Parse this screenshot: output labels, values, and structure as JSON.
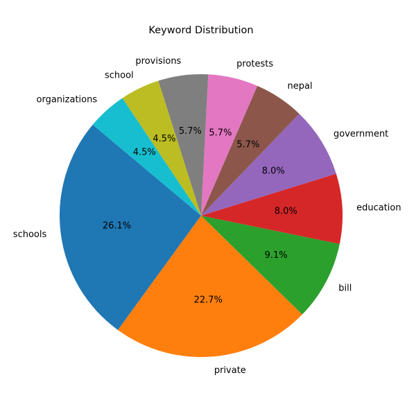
{
  "chart_data": {
    "type": "pie",
    "title": "Keyword Distribution",
    "categories": [
      "schools",
      "private",
      "bill",
      "education",
      "government",
      "nepal",
      "protests",
      "provisions",
      "school",
      "organizations"
    ],
    "values": [
      26.1,
      22.7,
      9.1,
      8.0,
      8.0,
      5.7,
      5.7,
      5.7,
      4.5,
      4.5
    ],
    "percent_labels": [
      "26.1%",
      "22.7%",
      "9.1%",
      "8.0%",
      "8.0%",
      "5.7%",
      "5.7%",
      "5.7%",
      "4.5%",
      "4.5%"
    ],
    "colors": [
      "#1f77b4",
      "#ff7f0e",
      "#2ca02c",
      "#d62728",
      "#9467bd",
      "#8c564b",
      "#e377c2",
      "#7f7f7f",
      "#bcbd22",
      "#17becf"
    ],
    "start_angle_deg": 140,
    "direction": "counterclockwise",
    "legend": "none"
  }
}
